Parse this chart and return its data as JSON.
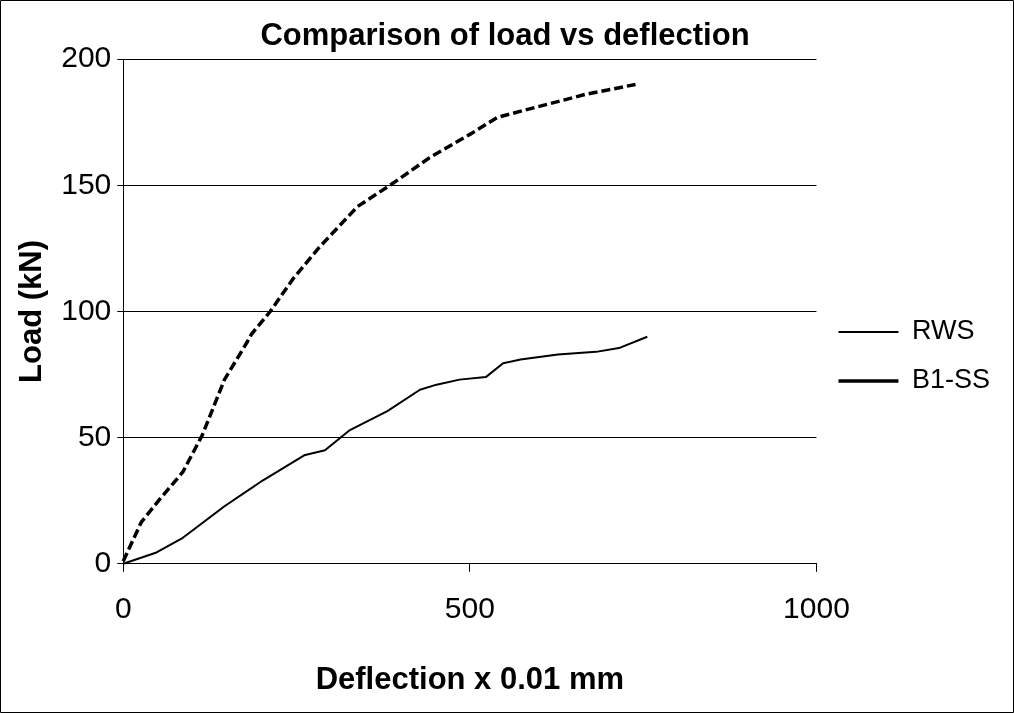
{
  "chart_data": {
    "type": "line",
    "title": "Comparison of load vs deflection",
    "xlabel": "Deflection x 0.01 mm",
    "ylabel": "Load (kN)",
    "xlim": [
      0,
      1000
    ],
    "xticks": [
      0,
      500,
      1000
    ],
    "ylim": [
      0,
      200
    ],
    "yticks": [
      0,
      50,
      100,
      150,
      200
    ],
    "grid": "y",
    "legend": "right",
    "marker": "none",
    "series": [
      {
        "name": "RWS",
        "color": "#000000",
        "line_style": "solid",
        "x": [
          0,
          48,
          86,
          146,
          201,
          261,
          291,
          327,
          381,
          428,
          452,
          485,
          523,
          548,
          573,
          627,
          682,
          715,
          756
        ],
        "values": [
          0,
          4.5,
          10.3,
          22.8,
          33,
          43,
          45,
          53,
          60.5,
          69,
          71,
          73,
          74,
          79.5,
          81,
          83,
          84,
          85.5,
          90
        ]
      },
      {
        "name": "B1-SS",
        "color": "#000000",
        "line_style": "dashed",
        "x": [
          0,
          15,
          26,
          53,
          86,
          114,
          146,
          179,
          185,
          212,
          245,
          283,
          338,
          390,
          442,
          502,
          540,
          589,
          666,
          739
        ],
        "values": [
          1,
          10,
          16.5,
          25.7,
          36.4,
          51,
          73,
          88,
          91,
          100,
          113,
          125.5,
          141.6,
          151,
          161,
          170.5,
          177,
          180.5,
          186,
          190
        ]
      }
    ]
  }
}
